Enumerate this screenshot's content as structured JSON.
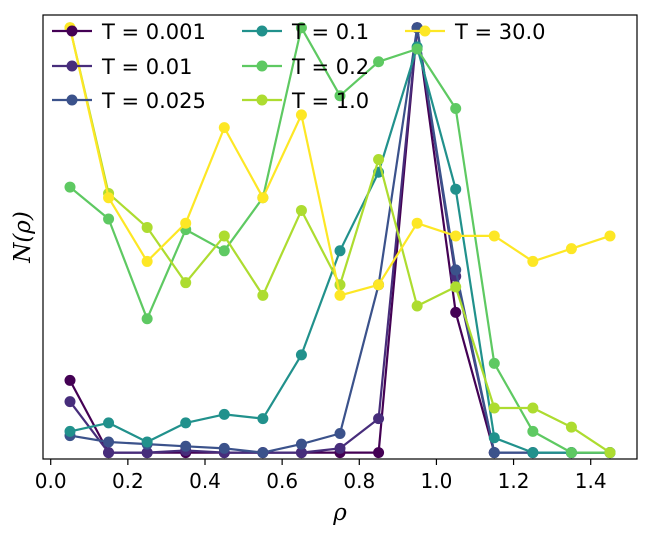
{
  "chart_data": {
    "type": "line",
    "title": "",
    "xlabel": "ρ",
    "ylabel": "N(ρ)",
    "xlim": [
      -0.02,
      1.52
    ],
    "ylim": [
      -0.003,
      0.206
    ],
    "xticks": [
      0.0,
      0.2,
      0.4,
      0.6,
      0.8,
      1.0,
      1.2,
      1.4
    ],
    "xtick_labels": [
      "0.0",
      "0.2",
      "0.4",
      "0.6",
      "0.8",
      "1.0",
      "1.2",
      "1.4"
    ],
    "grid": false,
    "legend_position": "top",
    "series": [
      {
        "name": "T = 0.001",
        "color": "#440154",
        "x": [
          0.05,
          0.15,
          0.25,
          0.35,
          0.45,
          0.55,
          0.65,
          0.75,
          0.85,
          0.95,
          1.05,
          1.15
        ],
        "y": [
          0.034,
          0.0,
          0.0,
          0.0,
          0.0,
          0.0,
          0.0,
          0.0,
          0.0,
          0.2,
          0.066,
          0.0
        ]
      },
      {
        "name": "T = 0.01",
        "color": "#472d7b",
        "x": [
          0.05,
          0.15,
          0.25,
          0.35,
          0.45,
          0.55,
          0.65,
          0.75,
          0.85,
          0.95,
          1.05,
          1.15,
          1.25,
          1.35,
          1.45
        ],
        "y": [
          0.024,
          0.0,
          0.0,
          0.001,
          0.0,
          0.0,
          0.0,
          0.002,
          0.016,
          0.2,
          0.083,
          0.0,
          0.0,
          0.0,
          0.0
        ]
      },
      {
        "name": "T = 0.025",
        "color": "#3b528b",
        "x": [
          0.05,
          0.15,
          0.25,
          0.35,
          0.45,
          0.55,
          0.65,
          0.75,
          0.85,
          0.95,
          1.05,
          1.15,
          1.25,
          1.35,
          1.45
        ],
        "y": [
          0.008,
          0.005,
          0.004,
          0.003,
          0.002,
          0.0,
          0.004,
          0.009,
          0.079,
          0.2,
          0.086,
          0.0,
          0.0,
          0.0,
          0.0
        ]
      },
      {
        "name": "T = 0.1",
        "color": "#21918c",
        "x": [
          0.05,
          0.15,
          0.25,
          0.35,
          0.45,
          0.55,
          0.65,
          0.75,
          0.85,
          0.95,
          1.05,
          1.15,
          1.25,
          1.35,
          1.45
        ],
        "y": [
          0.01,
          0.014,
          0.005,
          0.014,
          0.018,
          0.016,
          0.046,
          0.095,
          0.132,
          0.191,
          0.124,
          0.007,
          0.0,
          0.0,
          0.0
        ]
      },
      {
        "name": "T = 0.2",
        "color": "#5ec962",
        "x": [
          0.05,
          0.15,
          0.25,
          0.35,
          0.45,
          0.55,
          0.65,
          0.75,
          0.85,
          0.95,
          1.05,
          1.15,
          1.25,
          1.35,
          1.45
        ],
        "y": [
          0.125,
          0.11,
          0.063,
          0.105,
          0.095,
          0.12,
          0.2,
          0.168,
          0.184,
          0.19,
          0.162,
          0.042,
          0.01,
          0.0,
          0.0
        ]
      },
      {
        "name": "T = 1.0",
        "color": "#addc30",
        "x": [
          0.05,
          0.15,
          0.25,
          0.35,
          0.45,
          0.55,
          0.65,
          0.75,
          0.85,
          0.95,
          1.05,
          1.15,
          1.25,
          1.35,
          1.45
        ],
        "y": [
          0.2,
          0.122,
          0.106,
          0.08,
          0.102,
          0.074,
          0.114,
          0.079,
          0.138,
          0.069,
          0.078,
          0.021,
          0.021,
          0.012,
          0.0
        ]
      },
      {
        "name": "T = 30.0",
        "color": "#fde725",
        "x": [
          0.05,
          0.15,
          0.25,
          0.35,
          0.45,
          0.55,
          0.65,
          0.75,
          0.85,
          0.95,
          1.05,
          1.15,
          1.25,
          1.35,
          1.45
        ],
        "y": [
          0.2,
          0.12,
          0.09,
          0.108,
          0.153,
          0.12,
          0.159,
          0.074,
          0.079,
          0.108,
          0.102,
          0.102,
          0.09,
          0.096,
          0.102
        ]
      }
    ]
  }
}
